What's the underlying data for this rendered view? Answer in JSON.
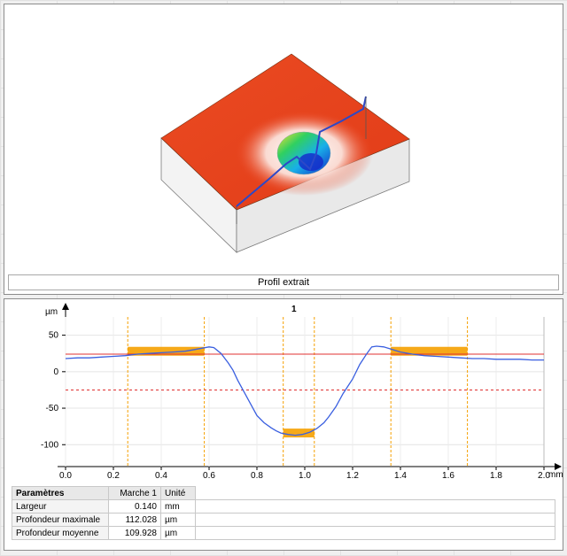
{
  "surface_view": {
    "caption": "Profil extrait",
    "colors": {
      "surface": "#e8401c",
      "pit_deep": "#1c2fd0",
      "profile_line": "#2c48c8",
      "side_wall": "#f2f2f2"
    }
  },
  "profile_chart": {
    "title": "1",
    "y_unit": "µm",
    "x_unit": "mm",
    "colors": {
      "curve": "#3a5fe0",
      "ref_line": "#e03030",
      "zone": "#f5a000"
    }
  },
  "chart_data": {
    "type": "line",
    "title": "1",
    "xlabel": "mm",
    "ylabel": "µm",
    "xlim": [
      0,
      2.0
    ],
    "ylim": [
      -130,
      75
    ],
    "x_ticks": [
      "0.0",
      "0.2",
      "0.4",
      "0.6",
      "0.8",
      "1.0",
      "1.2",
      "1.4",
      "1.6",
      "1.8",
      "2.0"
    ],
    "y_ticks": [
      "50",
      "0",
      "-50",
      "-100"
    ],
    "series": [
      {
        "x": [
          0.0,
          0.05,
          0.1,
          0.15,
          0.2,
          0.25,
          0.3,
          0.35,
          0.4,
          0.45,
          0.5,
          0.55,
          0.6,
          0.62,
          0.65,
          0.68,
          0.7,
          0.72,
          0.75,
          0.78,
          0.8,
          0.83,
          0.86,
          0.88,
          0.9,
          0.93,
          0.96,
          0.99,
          1.02,
          1.05,
          1.08,
          1.1,
          1.13,
          1.16,
          1.2,
          1.23,
          1.26,
          1.28,
          1.3,
          1.33,
          1.36,
          1.4,
          1.45,
          1.5,
          1.55,
          1.6,
          1.65,
          1.7,
          1.75,
          1.8,
          1.85,
          1.9,
          1.95,
          2.0
        ],
        "y": [
          18,
          19,
          19,
          20,
          21,
          22,
          24,
          25,
          26,
          27,
          28,
          31,
          34,
          33,
          25,
          12,
          2,
          -12,
          -30,
          -48,
          -60,
          -70,
          -77,
          -81,
          -84,
          -86,
          -87,
          -86,
          -83,
          -78,
          -70,
          -62,
          -48,
          -30,
          -10,
          10,
          25,
          34,
          35,
          34,
          31,
          27,
          24,
          22,
          21,
          20,
          19,
          18,
          18,
          17,
          17,
          17,
          16,
          16
        ]
      }
    ],
    "reference_lines": [
      {
        "style": "solid",
        "y": 24
      },
      {
        "style": "dashed",
        "y": -25
      }
    ],
    "zones": [
      {
        "x_start": 0.26,
        "x_end": 0.58,
        "level": 28
      },
      {
        "x_start": 0.91,
        "x_end": 1.04,
        "level": -84
      },
      {
        "x_start": 1.36,
        "x_end": 1.68,
        "level": 28
      }
    ]
  },
  "params_table": {
    "headers": [
      "Paramètres",
      "Marche 1",
      "Unité"
    ],
    "rows": [
      {
        "name": "Largeur",
        "value": "0.140",
        "unit": "mm"
      },
      {
        "name": "Profondeur maximale",
        "value": "112.028",
        "unit": "µm"
      },
      {
        "name": "Profondeur moyenne",
        "value": "109.928",
        "unit": "µm"
      }
    ]
  }
}
